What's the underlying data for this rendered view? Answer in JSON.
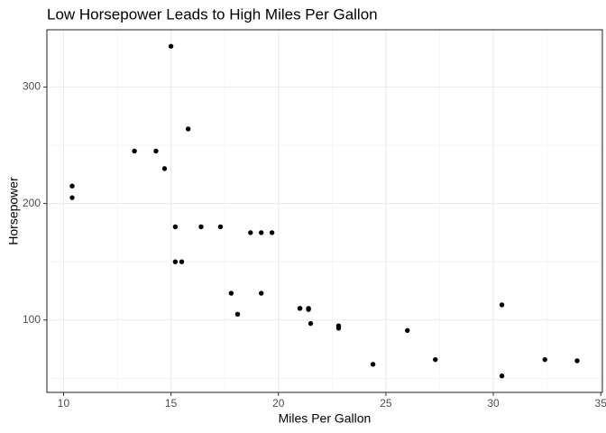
{
  "chart_data": {
    "type": "scatter",
    "title": "Low Horsepower Leads to High Miles Per Gallon",
    "x_label": "Miles Per Gallon",
    "y_label": "Horsepower",
    "series": [
      {
        "color": "#000000",
        "x": [
          21.0,
          21.0,
          22.8,
          21.4,
          18.7,
          18.1,
          14.3,
          24.4,
          22.8,
          19.2,
          17.8,
          16.4,
          17.3,
          15.2,
          10.4,
          10.4,
          14.7,
          32.4,
          30.4,
          33.9,
          21.5,
          15.5,
          15.2,
          13.3,
          19.2,
          27.3,
          26.0,
          30.4,
          15.8,
          19.7,
          15.0,
          21.4
        ],
        "values": [
          110,
          110,
          93,
          110,
          175,
          105,
          245,
          62,
          95,
          123,
          123,
          180,
          180,
          180,
          205,
          215,
          230,
          66,
          52,
          65,
          97,
          150,
          150,
          245,
          175,
          66,
          91,
          113,
          264,
          175,
          335,
          109
        ]
      }
    ],
    "xlim": [
      9.225,
      35.075
    ],
    "xticks": [
      10,
      15,
      20,
      25,
      30,
      35
    ],
    "x_minor_ticks": [
      12.5,
      17.5,
      22.5,
      27.5,
      32.5
    ],
    "ylim": [
      37.85,
      349.15
    ],
    "yticks": [
      100,
      200,
      300
    ],
    "y_minor_ticks": [
      50,
      150,
      250
    ],
    "grid": true
  }
}
